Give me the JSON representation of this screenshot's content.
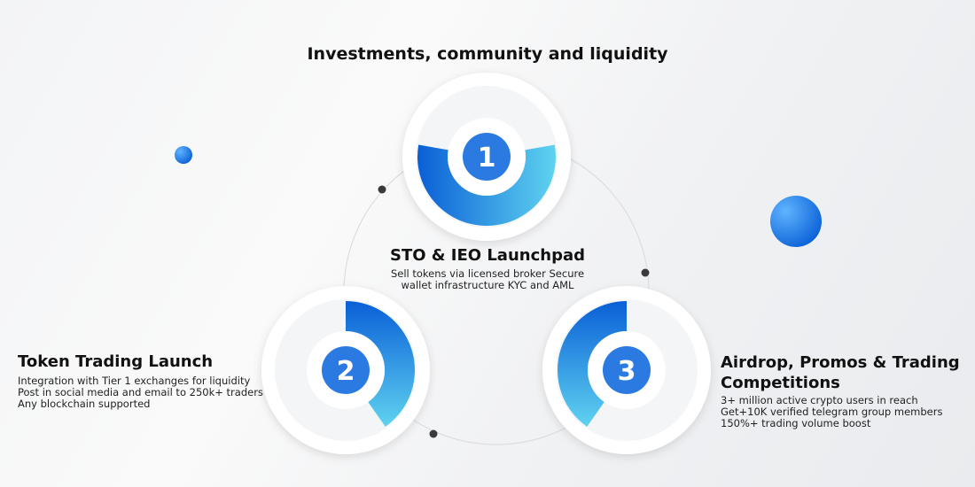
{
  "title": "Investments, community and liquidity",
  "colors": {
    "blue_dark": "#0a5fd6",
    "blue_light": "#5fd3f0",
    "dot": "#3a3a3a",
    "ring": "#ffffff"
  },
  "steps": [
    {
      "number": "1",
      "title": "STO & IEO Launchpad",
      "lines": [
        "Sell tokens via licensed broker Secure",
        "wallet infrastructure KYC and AML"
      ]
    },
    {
      "number": "2",
      "title": "Token Trading Launch",
      "lines": [
        "Integration with Tier 1 exchanges for liquidity",
        "Post in social media and email to 250k+ traders",
        "Any blockchain supported"
      ]
    },
    {
      "number": "3",
      "title": "Airdrop, Promos & Trading Competitions",
      "lines": [
        "3+ million active crypto users in reach",
        "Get+10K verified telegram group members",
        "150%+ trading volume boost"
      ]
    }
  ]
}
